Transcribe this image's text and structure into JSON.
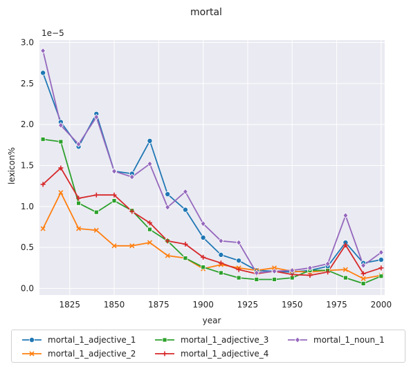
{
  "chart_data": {
    "type": "line",
    "title": "mortal",
    "xlabel": "year",
    "ylabel": "lexicon%",
    "y_scale_label": "1e−5",
    "xlim": [
      1808,
      2002
    ],
    "ylim": [
      -0.08,
      3.03
    ],
    "x_ticks": [
      1825,
      1850,
      1875,
      1900,
      1925,
      1950,
      1975,
      2000
    ],
    "y_ticks": [
      0.0,
      0.5,
      1.0,
      1.5,
      2.0,
      2.5,
      3.0
    ],
    "y_tick_labels": [
      "0.0",
      "0.5",
      "1.0",
      "1.5",
      "2.0",
      "2.5",
      "3.0"
    ],
    "grid": true,
    "legend_position": "bottom",
    "x": [
      1810,
      1820,
      1830,
      1840,
      1850,
      1860,
      1870,
      1880,
      1890,
      1900,
      1910,
      1920,
      1930,
      1940,
      1950,
      1960,
      1970,
      1980,
      1990,
      2000
    ],
    "series": [
      {
        "name": "mortal_1_adjective_1",
        "color": "#1f77b4",
        "marker": "circle",
        "values": [
          2.63,
          2.03,
          1.73,
          2.13,
          1.43,
          1.4,
          1.8,
          1.15,
          0.96,
          0.62,
          0.41,
          0.34,
          0.22,
          0.21,
          0.2,
          0.22,
          0.27,
          0.56,
          0.31,
          0.35
        ]
      },
      {
        "name": "mortal_1_adjective_2",
        "color": "#ff7f0e",
        "marker": "x",
        "values": [
          0.73,
          1.17,
          0.73,
          0.71,
          0.52,
          0.52,
          0.56,
          0.4,
          0.37,
          0.24,
          0.29,
          0.25,
          0.22,
          0.25,
          0.21,
          0.2,
          0.22,
          0.23,
          0.12,
          0.16
        ]
      },
      {
        "name": "mortal_1_adjective_3",
        "color": "#2ca02c",
        "marker": "square",
        "values": [
          1.82,
          1.79,
          1.04,
          0.93,
          1.07,
          0.95,
          0.72,
          0.58,
          0.37,
          0.26,
          0.19,
          0.13,
          0.11,
          0.11,
          0.13,
          0.22,
          0.22,
          0.13,
          0.06,
          0.15
        ]
      },
      {
        "name": "mortal_1_adjective_4",
        "color": "#d62728",
        "marker": "plus",
        "values": [
          1.27,
          1.47,
          1.1,
          1.14,
          1.14,
          0.94,
          0.8,
          0.58,
          0.54,
          0.38,
          0.31,
          0.23,
          0.18,
          0.21,
          0.17,
          0.16,
          0.2,
          0.53,
          0.18,
          0.25
        ]
      },
      {
        "name": "mortal_1_noun_1",
        "color": "#9467bd",
        "marker": "diamond",
        "values": [
          2.9,
          1.99,
          1.76,
          2.09,
          1.43,
          1.36,
          1.52,
          0.99,
          1.18,
          0.79,
          0.58,
          0.56,
          0.19,
          0.21,
          0.22,
          0.25,
          0.3,
          0.89,
          0.28,
          0.44
        ]
      }
    ]
  }
}
